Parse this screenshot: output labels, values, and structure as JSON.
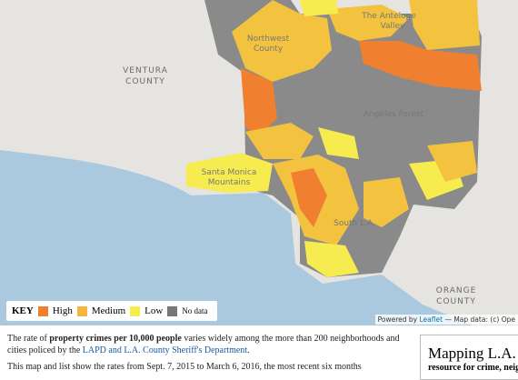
{
  "map": {
    "labels": [
      "VENTURA",
      "COUNTY",
      "Northwest",
      "County",
      "The Antelope",
      "Valley",
      "Angeles Forest",
      "Santa Monica",
      "Mountains",
      "ORANGE",
      "COUNTY",
      "South L.A."
    ],
    "key": {
      "title": "KEY",
      "items": [
        "High",
        "Medium",
        "Low",
        "No data"
      ]
    },
    "attribution": {
      "prefix": "Powered by",
      "link": "Leaflet",
      "suffix": "— Map data: (c) Ope"
    }
  },
  "article": {
    "paragraph1": [
      "The rate of ",
      "property crimes per 10,000 people",
      " varies widely among the more than 200 neighborhoods and cities policed by the ",
      "LAPD and L.A. County Sheriff's Department",
      "."
    ],
    "paragraph2": "This map and list show the rates from Sept. 7, 2015 to March 6, 2016, the most recent six months"
  },
  "sidebar": {
    "title": "Mapping L.A.",
    "subtitle": "resource for crime, neig"
  }
}
